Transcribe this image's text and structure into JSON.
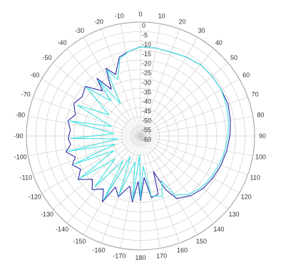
{
  "chart_data": {
    "type": "polar-line",
    "angle_unit": "degrees",
    "angle_zero": "top",
    "angle_direction": "clockwise-positive (left side negative)",
    "angle_ticks": [
      0,
      -10,
      -20,
      -30,
      -40,
      -50,
      -60,
      -70,
      -80,
      -90,
      -100,
      -110,
      -120,
      -130,
      -140,
      -150,
      -160,
      -170,
      180,
      170,
      160,
      150,
      140,
      130,
      120,
      110,
      100,
      90,
      80,
      70,
      60,
      50,
      40,
      30,
      20,
      10
    ],
    "radial_ticks": [
      0,
      -5,
      -10,
      -15,
      -20,
      -25,
      -30,
      -35,
      -40,
      -45,
      -50,
      -55,
      -60
    ],
    "rlim": [
      -60,
      0
    ],
    "grid": true,
    "legend": "none",
    "series": [
      {
        "color": "#2a2aa8",
        "points": [
          [
            0,
            -13
          ],
          [
            10,
            -13
          ],
          [
            20,
            -13
          ],
          [
            30,
            -12
          ],
          [
            40,
            -11
          ],
          [
            50,
            -11
          ],
          [
            60,
            -11
          ],
          [
            70,
            -11
          ],
          [
            80,
            -12
          ],
          [
            90,
            -13
          ],
          [
            100,
            -14
          ],
          [
            110,
            -15
          ],
          [
            120,
            -16
          ],
          [
            130,
            -17
          ],
          [
            140,
            -19
          ],
          [
            150,
            -22
          ],
          [
            155,
            -29
          ],
          [
            160,
            -40
          ],
          [
            163,
            -28
          ],
          [
            170,
            -27
          ],
          [
            175,
            -38
          ],
          [
            180,
            -26
          ],
          [
            183,
            -36
          ],
          [
            187,
            -25
          ],
          [
            192,
            -33
          ],
          [
            200,
            -26
          ],
          [
            206,
            -30
          ],
          [
            210,
            -20
          ],
          [
            215,
            -26
          ],
          [
            222,
            -22
          ],
          [
            228,
            -26
          ],
          [
            235,
            -20
          ],
          [
            241,
            -24
          ],
          [
            247,
            -21
          ],
          [
            252,
            -24
          ],
          [
            258,
            -20
          ],
          [
            263,
            -23
          ],
          [
            268,
            -22
          ],
          [
            275,
            -23
          ],
          [
            282,
            -21
          ],
          [
            288,
            -24
          ],
          [
            296,
            -21
          ],
          [
            304,
            -23
          ],
          [
            312,
            -21
          ],
          [
            320,
            -29
          ],
          [
            323,
            -22
          ],
          [
            328,
            -31
          ],
          [
            333,
            -20
          ],
          [
            338,
            -25
          ],
          [
            345,
            -17
          ],
          [
            352,
            -15
          ],
          [
            360,
            -13
          ]
        ]
      },
      {
        "color": "#40e0e0",
        "points": [
          [
            0,
            -13
          ],
          [
            10,
            -13
          ],
          [
            20,
            -13
          ],
          [
            30,
            -12
          ],
          [
            40,
            -11
          ],
          [
            50,
            -11
          ],
          [
            60,
            -11
          ],
          [
            70,
            -12
          ],
          [
            80,
            -13
          ],
          [
            90,
            -14
          ],
          [
            100,
            -15
          ],
          [
            110,
            -16
          ],
          [
            120,
            -17
          ],
          [
            130,
            -18
          ],
          [
            140,
            -20
          ],
          [
            150,
            -24
          ],
          [
            155,
            -34
          ],
          [
            160,
            -26
          ],
          [
            170,
            -28
          ],
          [
            175,
            -44
          ],
          [
            180,
            -27
          ],
          [
            183,
            -50
          ],
          [
            187,
            -26
          ],
          [
            192,
            -46
          ],
          [
            200,
            -27
          ],
          [
            206,
            -48
          ],
          [
            210,
            -21
          ],
          [
            215,
            -44
          ],
          [
            222,
            -24
          ],
          [
            228,
            -42
          ],
          [
            235,
            -21
          ],
          [
            241,
            -44
          ],
          [
            247,
            -22
          ],
          [
            252,
            -46
          ],
          [
            258,
            -21
          ],
          [
            263,
            -48
          ],
          [
            268,
            -23
          ],
          [
            275,
            -46
          ],
          [
            282,
            -22
          ],
          [
            288,
            -44
          ],
          [
            296,
            -23
          ],
          [
            304,
            -40
          ],
          [
            312,
            -22
          ],
          [
            320,
            -36
          ],
          [
            323,
            -23
          ],
          [
            328,
            -40
          ],
          [
            333,
            -21
          ],
          [
            338,
            -28
          ],
          [
            345,
            -18
          ],
          [
            352,
            -15
          ],
          [
            360,
            -13
          ]
        ]
      }
    ]
  }
}
